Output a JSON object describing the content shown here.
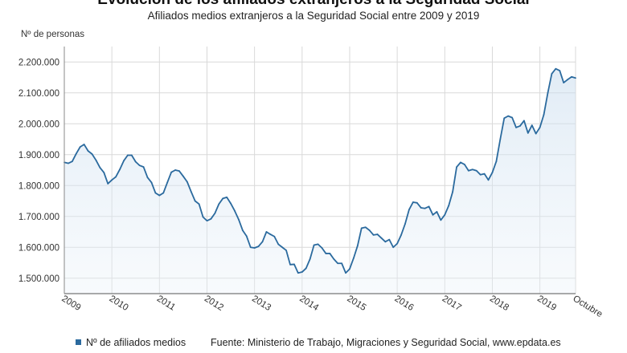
{
  "chart_data": {
    "type": "area",
    "title": "Evolución de los afiliados extranjeros a la Seguridad Social",
    "subtitle": "Afiliados medios extranjeros a la Seguridad Social entre 2009 y 2019",
    "ylabel": "Nº de personas",
    "ylim": [
      1450000,
      2250000
    ],
    "yticks": [
      1500000,
      1600000,
      1700000,
      1800000,
      1900000,
      2000000,
      2100000,
      2200000
    ],
    "ytick_labels": [
      "1.500.000",
      "1.600.000",
      "1.700.000",
      "1.800.000",
      "1.900.000",
      "2.000.000",
      "2.100.000",
      "2.200.000"
    ],
    "xtick_labels": [
      "2009",
      "2010",
      "2011",
      "2012",
      "2013",
      "2014",
      "2015",
      "2016",
      "2017",
      "2018",
      "2019",
      "Octubre"
    ],
    "grid": true,
    "series": [
      {
        "name": "Nº de afiliados medios",
        "color": "#2b6a9e",
        "x": [
          "2009-01",
          "2009-02",
          "2009-03",
          "2009-04",
          "2009-05",
          "2009-06",
          "2009-07",
          "2009-08",
          "2009-09",
          "2009-10",
          "2009-11",
          "2009-12",
          "2010-01",
          "2010-02",
          "2010-03",
          "2010-04",
          "2010-05",
          "2010-06",
          "2010-07",
          "2010-08",
          "2010-09",
          "2010-10",
          "2010-11",
          "2010-12",
          "2011-01",
          "2011-02",
          "2011-03",
          "2011-04",
          "2011-05",
          "2011-06",
          "2011-07",
          "2011-08",
          "2011-09",
          "2011-10",
          "2011-11",
          "2011-12",
          "2012-01",
          "2012-02",
          "2012-03",
          "2012-04",
          "2012-05",
          "2012-06",
          "2012-07",
          "2012-08",
          "2012-09",
          "2012-10",
          "2012-11",
          "2012-12",
          "2013-01",
          "2013-02",
          "2013-03",
          "2013-04",
          "2013-05",
          "2013-06",
          "2013-07",
          "2013-08",
          "2013-09",
          "2013-10",
          "2013-11",
          "2013-12",
          "2014-01",
          "2014-02",
          "2014-03",
          "2014-04",
          "2014-05",
          "2014-06",
          "2014-07",
          "2014-08",
          "2014-09",
          "2014-10",
          "2014-11",
          "2014-12",
          "2015-01",
          "2015-02",
          "2015-03",
          "2015-04",
          "2015-05",
          "2015-06",
          "2015-07",
          "2015-08",
          "2015-09",
          "2015-10",
          "2015-11",
          "2015-12",
          "2016-01",
          "2016-02",
          "2016-03",
          "2016-04",
          "2016-05",
          "2016-06",
          "2016-07",
          "2016-08",
          "2016-09",
          "2016-10",
          "2016-11",
          "2016-12",
          "2017-01",
          "2017-02",
          "2017-03",
          "2017-04",
          "2017-05",
          "2017-06",
          "2017-07",
          "2017-08",
          "2017-09",
          "2017-10",
          "2017-11",
          "2017-12",
          "2018-01",
          "2018-02",
          "2018-03",
          "2018-04",
          "2018-05",
          "2018-06",
          "2018-07",
          "2018-08",
          "2018-09",
          "2018-10",
          "2018-11",
          "2018-12",
          "2019-01",
          "2019-02",
          "2019-03",
          "2019-04",
          "2019-05",
          "2019-06",
          "2019-07",
          "2019-08",
          "2019-09",
          "2019-10"
        ],
        "values": [
          1875000,
          1872000,
          1878000,
          1903000,
          1925000,
          1933000,
          1912000,
          1902000,
          1882000,
          1858000,
          1842000,
          1806000,
          1818000,
          1828000,
          1852000,
          1880000,
          1898000,
          1898000,
          1877000,
          1865000,
          1860000,
          1826000,
          1810000,
          1776000,
          1768000,
          1776000,
          1810000,
          1843000,
          1850000,
          1847000,
          1830000,
          1812000,
          1780000,
          1750000,
          1740000,
          1698000,
          1686000,
          1692000,
          1710000,
          1740000,
          1758000,
          1762000,
          1742000,
          1718000,
          1690000,
          1655000,
          1636000,
          1600000,
          1598000,
          1603000,
          1618000,
          1650000,
          1642000,
          1635000,
          1610000,
          1600000,
          1590000,
          1544000,
          1545000,
          1517000,
          1520000,
          1532000,
          1562000,
          1607000,
          1610000,
          1598000,
          1580000,
          1580000,
          1562000,
          1548000,
          1548000,
          1517000,
          1530000,
          1565000,
          1605000,
          1662000,
          1665000,
          1655000,
          1640000,
          1642000,
          1630000,
          1618000,
          1625000,
          1600000,
          1612000,
          1640000,
          1676000,
          1722000,
          1746000,
          1744000,
          1728000,
          1726000,
          1732000,
          1705000,
          1715000,
          1688000,
          1705000,
          1735000,
          1780000,
          1860000,
          1875000,
          1868000,
          1848000,
          1852000,
          1848000,
          1835000,
          1838000,
          1818000,
          1842000,
          1878000,
          1950000,
          2018000,
          2025000,
          2020000,
          1988000,
          1993000,
          2010000,
          1970000,
          1995000,
          1968000,
          1988000,
          2030000,
          2100000,
          2162000,
          2178000,
          2172000,
          2133000,
          2143000,
          2152000,
          2148000
        ]
      }
    ]
  },
  "legend": {
    "label": "Nº de afiliados medios",
    "source": "Fuente: Ministerio de Trabajo, Migraciones y Seguridad Social, www.epdata.es"
  }
}
